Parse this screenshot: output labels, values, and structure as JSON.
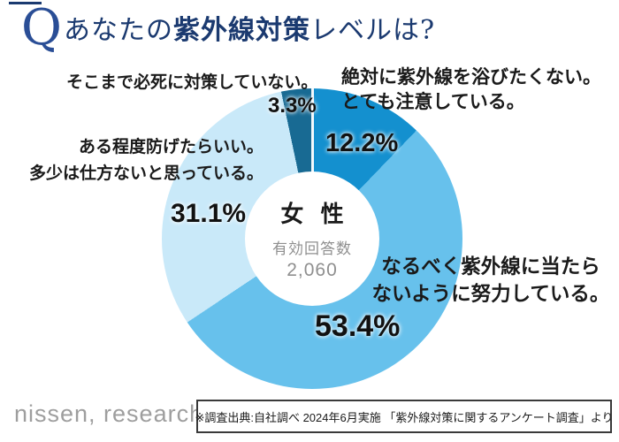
{
  "header": {
    "q_mark": "Q",
    "title_part1": "あなたの",
    "title_part2": "紫外線対策",
    "title_part3": "レベルは?",
    "accent_color": "#1b3a70"
  },
  "chart_data": {
    "type": "pie",
    "style": "donut",
    "title": "あなたの紫外線対策レベルは?",
    "direction": "clockwise",
    "start_angle_deg": 0,
    "center": {
      "group": "女 性",
      "caption": "有効回答数",
      "count": "2,060"
    },
    "segments": [
      {
        "label": "絶対に紫外線を浴びたくない。とても注意している。",
        "value": 12.2,
        "pct": "12.2%",
        "color": "#1490cf"
      },
      {
        "label": "なるべく紫外線に当たらないように努力している。",
        "value": 53.4,
        "pct": "53.4%",
        "color": "#67c1ec"
      },
      {
        "label": "ある程度防げたらいい。多少は仕方ないと思っている。",
        "value": 31.1,
        "pct": "31.1%",
        "color": "#c9e9f9"
      },
      {
        "label": "そこまで必死に対策していない。",
        "value": 3.3,
        "pct": "3.3%",
        "color": "#186a93"
      }
    ]
  },
  "callouts": {
    "none": {
      "line1": "そこまで必死に対策していない。"
    },
    "max": {
      "line1": "絶対に紫外線を浴びたくない。",
      "line2": "とても注意している。"
    },
    "mid": {
      "line1": "ある程度防げたらいい。",
      "line2": "多少は仕方ないと思っている。"
    },
    "high": {
      "line1": "なるべく紫外線に当たら",
      "line2": "ないように努力している。"
    }
  },
  "footer": {
    "logo_text": "nissen, research",
    "source_note": "※調査出典:自社調べ 2024年6月実施 「紫外線対策に関するアンケート調査」より"
  }
}
